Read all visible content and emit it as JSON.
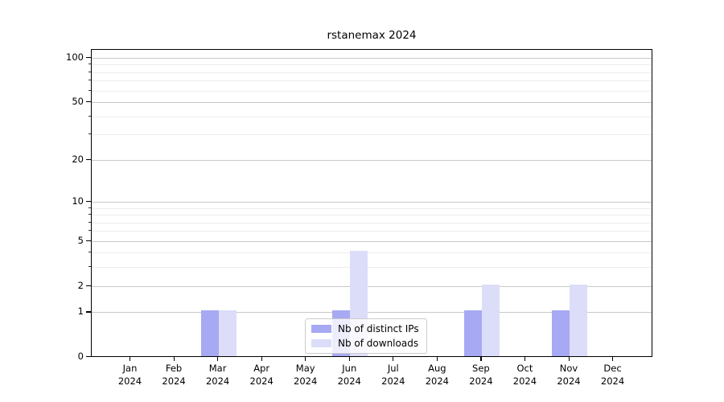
{
  "title": "rstanemax 2024",
  "legend": {
    "items": [
      {
        "label": "Nb of distinct IPs",
        "color": "#a7a9f3"
      },
      {
        "label": "Nb of downloads",
        "color": "#dcddf9"
      }
    ],
    "position": "bottom-center"
  },
  "chart_data": {
    "type": "bar",
    "title": "rstanemax 2024",
    "categories": [
      "Jan",
      "Feb",
      "Mar",
      "Apr",
      "May",
      "Jun",
      "Jul",
      "Aug",
      "Sep",
      "Oct",
      "Nov",
      "Dec"
    ],
    "category_year": "2024",
    "series": [
      {
        "name": "Nb of distinct IPs",
        "color": "#a7a9f3",
        "values": [
          0,
          0,
          1,
          0,
          0,
          1,
          0,
          0,
          1,
          0,
          1,
          0
        ]
      },
      {
        "name": "Nb of downloads",
        "color": "#dcddf9",
        "values": [
          0,
          0,
          1,
          0,
          0,
          4,
          0,
          0,
          2,
          0,
          2,
          0
        ]
      }
    ],
    "xlabel": "",
    "ylabel": "",
    "y_scale": "log1p",
    "y_major_ticks": [
      0,
      1,
      2,
      5,
      10,
      20,
      50,
      100
    ],
    "y_minor_ticks": [
      3,
      4,
      6,
      7,
      8,
      9,
      30,
      40,
      60,
      70,
      80,
      90
    ],
    "ylim": [
      0,
      113
    ],
    "grid": "horizontal",
    "grid_major_color": "#c9c9c9",
    "grid_minor_color": "#ececec",
    "legend_position": "bottom-center"
  }
}
